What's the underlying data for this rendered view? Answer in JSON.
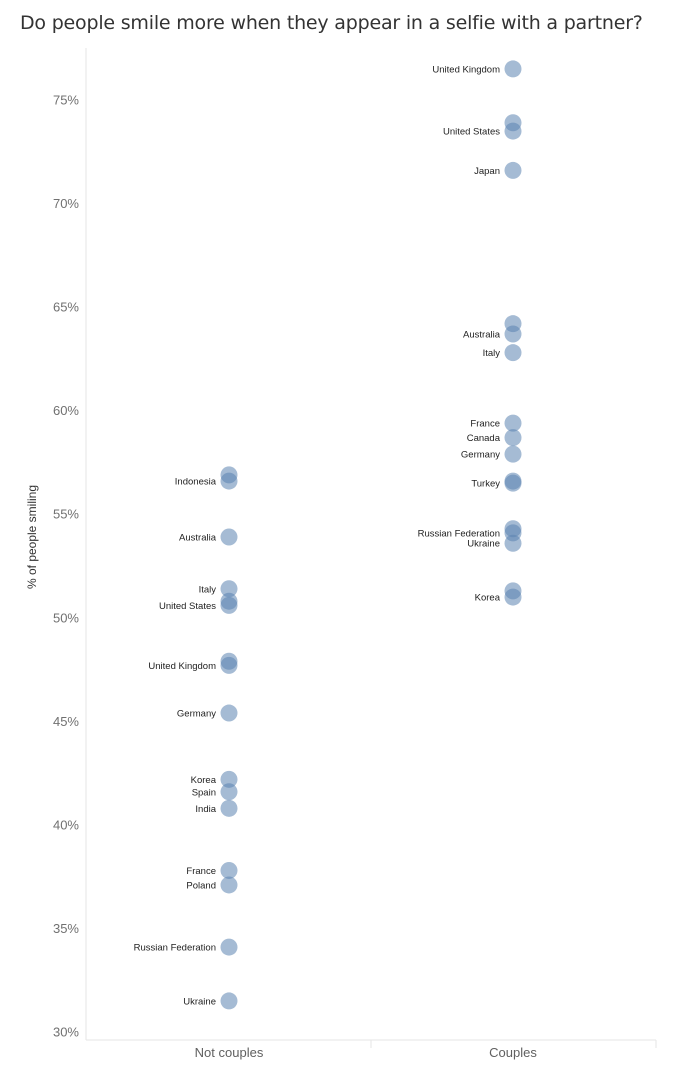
{
  "title": "Do people smile more when they appear in a selfie with a partner?",
  "colors": {
    "point": "#5b84b1",
    "axis": "#e6e6e6",
    "text": "#333333"
  },
  "chart_data": {
    "type": "scatter",
    "ylabel": "% of people smiling",
    "xlabel": "",
    "categories": [
      "Not couples",
      "Couples"
    ],
    "ylim": [
      30,
      77
    ],
    "yticks": [
      30,
      35,
      40,
      45,
      50,
      55,
      60,
      65,
      70,
      75
    ],
    "ytick_labels": [
      "30%",
      "35%",
      "40%",
      "45%",
      "50%",
      "55%",
      "60%",
      "65%",
      "70%",
      "75%"
    ],
    "grid": false,
    "series": [
      {
        "category": "Not couples",
        "points": [
          {
            "label": "",
            "y": 56.9
          },
          {
            "label": "Indonesia",
            "y": 56.6
          },
          {
            "label": "Australia",
            "y": 53.9
          },
          {
            "label": "Italy",
            "y": 51.4
          },
          {
            "label": "",
            "y": 50.8
          },
          {
            "label": "United States",
            "y": 50.6
          },
          {
            "label": "",
            "y": 47.9
          },
          {
            "label": "United Kingdom",
            "y": 47.7
          },
          {
            "label": "Germany",
            "y": 45.4
          },
          {
            "label": "Korea",
            "y": 42.2
          },
          {
            "label": "Spain",
            "y": 41.6
          },
          {
            "label": "India",
            "y": 40.8
          },
          {
            "label": "France",
            "y": 37.8
          },
          {
            "label": "Poland",
            "y": 37.1
          },
          {
            "label": "Russian Federation",
            "y": 34.1
          },
          {
            "label": "Ukraine",
            "y": 31.5
          }
        ]
      },
      {
        "category": "Couples",
        "points": [
          {
            "label": "United Kingdom",
            "y": 76.5
          },
          {
            "label": "",
            "y": 73.9
          },
          {
            "label": "United States",
            "y": 73.5
          },
          {
            "label": "Japan",
            "y": 71.6
          },
          {
            "label": "",
            "y": 64.2
          },
          {
            "label": "Australia",
            "y": 63.7
          },
          {
            "label": "Italy",
            "y": 62.8
          },
          {
            "label": "France",
            "y": 59.4
          },
          {
            "label": "Canada",
            "y": 58.7
          },
          {
            "label": "Germany",
            "y": 57.9
          },
          {
            "label": "",
            "y": 56.6
          },
          {
            "label": "Turkey",
            "y": 56.5
          },
          {
            "label": "",
            "y": 54.3
          },
          {
            "label": "Russian Federation",
            "y": 54.1
          },
          {
            "label": "Ukraine",
            "y": 53.6
          },
          {
            "label": "",
            "y": 51.3
          },
          {
            "label": "Korea",
            "y": 51.0
          }
        ]
      }
    ]
  }
}
